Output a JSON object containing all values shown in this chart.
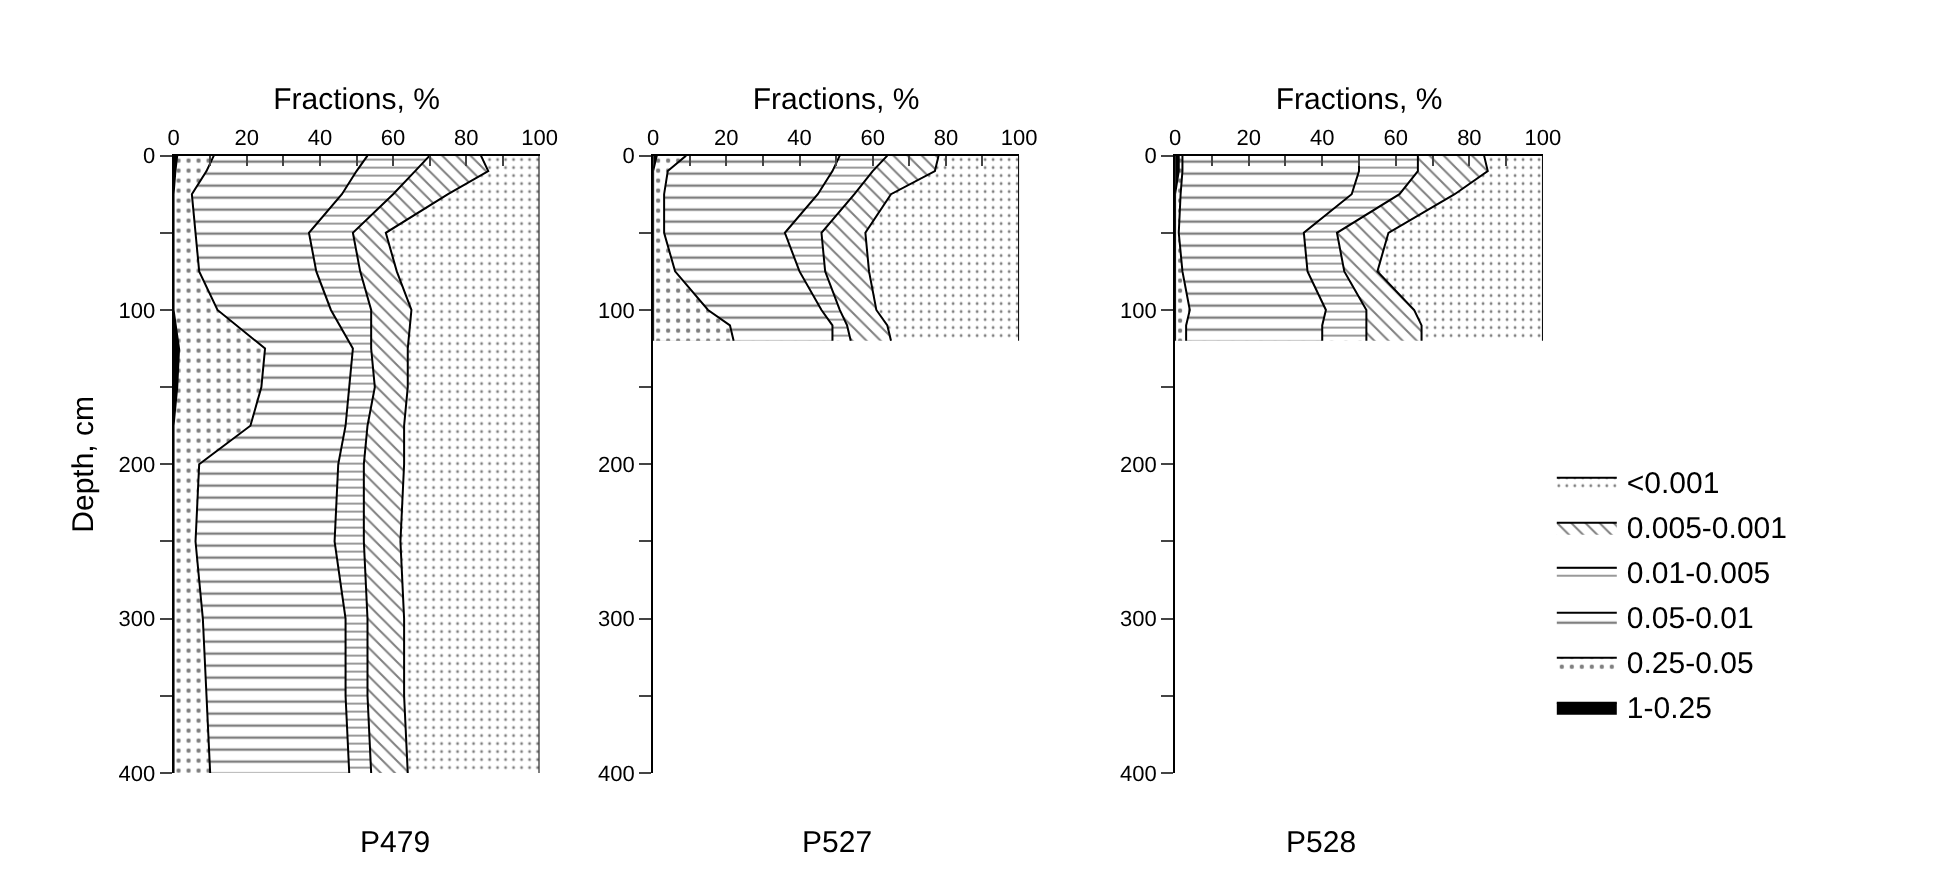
{
  "chart_data": [
    {
      "type": "area",
      "stacked": true,
      "orientation": "horizontal",
      "title": "P479",
      "xlabel": "Fractions, %",
      "ylabel": "Depth, cm",
      "x": [
        0,
        10,
        25,
        50,
        75,
        100,
        125,
        150,
        175,
        200,
        250,
        300,
        350,
        400
      ],
      "xlim": [
        0,
        100
      ],
      "xticks": [
        0,
        {
          "value": 10,
          "label": null
        },
        20,
        {
          "value": 30,
          "label": null
        },
        40,
        {
          "value": 50,
          "label": null
        },
        60,
        {
          "value": 70,
          "label": null
        },
        80,
        {
          "value": 90,
          "label": null
        },
        100
      ],
      "ylim": [
        400,
        0
      ],
      "yticks": [
        0,
        {
          "value": 50,
          "label": null
        },
        100,
        {
          "value": 150,
          "label": null
        },
        200,
        {
          "value": 250,
          "label": null
        },
        300,
        {
          "value": 350,
          "label": null
        },
        400
      ],
      "legend": false,
      "series": [
        {
          "color": "#000000",
          "values": [
            1,
            0.5,
            0,
            0,
            0,
            0,
            1.5,
            1,
            0,
            0,
            0,
            0,
            0,
            0
          ]
        },
        {
          "color": "#000000",
          "values": [
            10,
            8.5,
            5,
            6,
            7,
            12,
            23.5,
            23,
            21,
            7,
            6,
            8,
            9,
            10
          ]
        },
        {
          "color": "#000000",
          "values": [
            42,
            41,
            41,
            31,
            32,
            31,
            24,
            24,
            26,
            38,
            38,
            39,
            38,
            38
          ]
        },
        {
          "color": "#000000",
          "values": [
            17,
            16,
            14,
            12,
            12,
            11,
            5,
            7,
            6,
            7,
            8,
            6,
            6,
            6
          ]
        },
        {
          "color": "#000000",
          "values": [
            14,
            20,
            15,
            9,
            10,
            11,
            10,
            9,
            10,
            11,
            10,
            10,
            10,
            10
          ]
        },
        {
          "color": "#000000",
          "values": [
            16,
            14,
            25,
            42,
            39,
            35,
            36,
            36,
            37,
            37,
            38,
            37,
            37,
            36
          ]
        }
      ]
    },
    {
      "type": "area",
      "stacked": true,
      "orientation": "horizontal",
      "title": "P527",
      "xlabel": "Fractions, %",
      "x": [
        0,
        10,
        25,
        50,
        75,
        100,
        110,
        120
      ],
      "xlim": [
        0,
        100
      ],
      "xticks": [
        0,
        {
          "value": 10,
          "label": null
        },
        20,
        {
          "value": 30,
          "label": null
        },
        40,
        {
          "value": 50,
          "label": null
        },
        60,
        {
          "value": 70,
          "label": null
        },
        80,
        {
          "value": 90,
          "label": null
        },
        100
      ],
      "ylim": [
        400,
        0
      ],
      "yticks": [
        0,
        {
          "value": 50,
          "label": null
        },
        100,
        {
          "value": 150,
          "label": null
        },
        200,
        {
          "value": 250,
          "label": null
        },
        300,
        {
          "value": 350,
          "label": null
        },
        400
      ],
      "legend": false,
      "series": [
        {
          "color": "#000000",
          "values": [
            1,
            0,
            0,
            0,
            0,
            0,
            0,
            0
          ]
        },
        {
          "color": "#000000",
          "values": [
            8,
            4,
            3,
            3,
            6,
            15,
            21,
            22
          ]
        },
        {
          "color": "#000000",
          "values": [
            42,
            45,
            42,
            33,
            34,
            31,
            28,
            27
          ]
        },
        {
          "color": "#000000",
          "values": [
            13,
            11,
            10,
            10,
            7,
            5,
            4,
            5
          ]
        },
        {
          "color": "#000000",
          "values": [
            14,
            17,
            10,
            12,
            12,
            10,
            11,
            11
          ]
        },
        {
          "color": "#000000",
          "values": [
            22,
            23,
            35,
            42,
            41,
            39,
            36,
            35
          ]
        }
      ]
    },
    {
      "type": "area",
      "stacked": true,
      "orientation": "horizontal",
      "title": "P528",
      "xlabel": "Fractions, %",
      "x": [
        0,
        10,
        25,
        50,
        75,
        100,
        110,
        120
      ],
      "xlim": [
        0,
        100
      ],
      "xticks": [
        0,
        {
          "value": 10,
          "label": null
        },
        20,
        {
          "value": 30,
          "label": null
        },
        40,
        {
          "value": 50,
          "label": null
        },
        60,
        {
          "value": 70,
          "label": null
        },
        80,
        {
          "value": 90,
          "label": null
        },
        100
      ],
      "ylim": [
        400,
        0
      ],
      "yticks": [
        0,
        {
          "value": 50,
          "label": null
        },
        100,
        {
          "value": 150,
          "label": null
        },
        200,
        {
          "value": 250,
          "label": null
        },
        300,
        {
          "value": 350,
          "label": null
        },
        400
      ],
      "legend": "right",
      "series": [
        {
          "name": "1-0.25",
          "color": "#000000",
          "values": [
            1,
            1,
            0,
            0,
            0,
            0,
            0,
            0
          ]
        },
        {
          "name": "0.25-0.05",
          "color": "#000000",
          "values": [
            1,
            1,
            1.5,
            1,
            2,
            4,
            3,
            3
          ]
        },
        {
          "name": "0.05-0.01",
          "color": "#000000",
          "values": [
            48,
            48,
            46.5,
            34,
            34,
            37,
            37,
            37
          ]
        },
        {
          "name": "0.01-0.005",
          "color": "#000000",
          "values": [
            16,
            16,
            13,
            9,
            10,
            11,
            12,
            12
          ]
        },
        {
          "name": "0.005-0.001",
          "color": "#000000",
          "values": [
            18,
            19,
            15,
            14,
            9,
            13,
            15,
            15
          ]
        },
        {
          "name": "<0.001",
          "color": "#000000",
          "values": [
            16,
            15,
            24,
            42,
            45,
            35,
            33,
            33
          ]
        }
      ]
    }
  ]
}
